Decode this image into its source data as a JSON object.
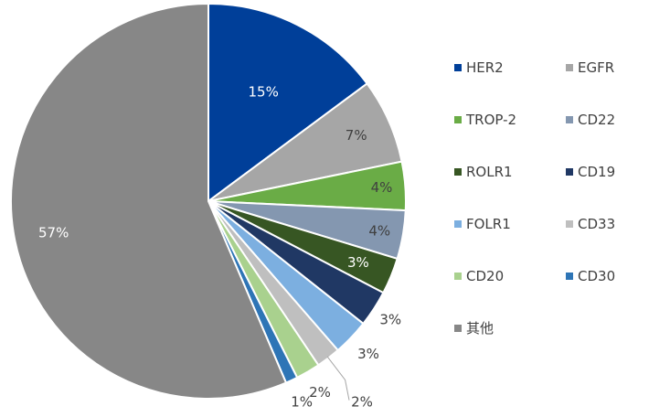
{
  "chart_data": {
    "type": "pie",
    "title": "",
    "legend_position": "right",
    "slices": [
      {
        "name": "HER2",
        "value": 15,
        "label": "15%",
        "color": "#003f99"
      },
      {
        "name": "EGFR",
        "value": 7,
        "label": "7%",
        "color": "#a6a6a6"
      },
      {
        "name": "TROP-2",
        "value": 4,
        "label": "4%",
        "color": "#6aac46"
      },
      {
        "name": "CD22",
        "value": 4,
        "label": "4%",
        "color": "#8497b0"
      },
      {
        "name": "ROLR1",
        "value": 3,
        "label": "3%",
        "color": "#375623"
      },
      {
        "name": "CD19",
        "value": 3,
        "label": "3%",
        "color": "#203864"
      },
      {
        "name": "FOLR1",
        "value": 3,
        "label": "3%",
        "color": "#7cafe0"
      },
      {
        "name": "CD33",
        "value": 2,
        "label": "2%",
        "color": "#bfbfbf"
      },
      {
        "name": "CD20",
        "value": 2,
        "label": "2%",
        "color": "#a9d18e"
      },
      {
        "name": "CD30",
        "value": 1,
        "label": "1%",
        "color": "#2e75b6"
      },
      {
        "name": "其他",
        "value": 57,
        "label": "57%",
        "color": "#878787"
      }
    ]
  }
}
